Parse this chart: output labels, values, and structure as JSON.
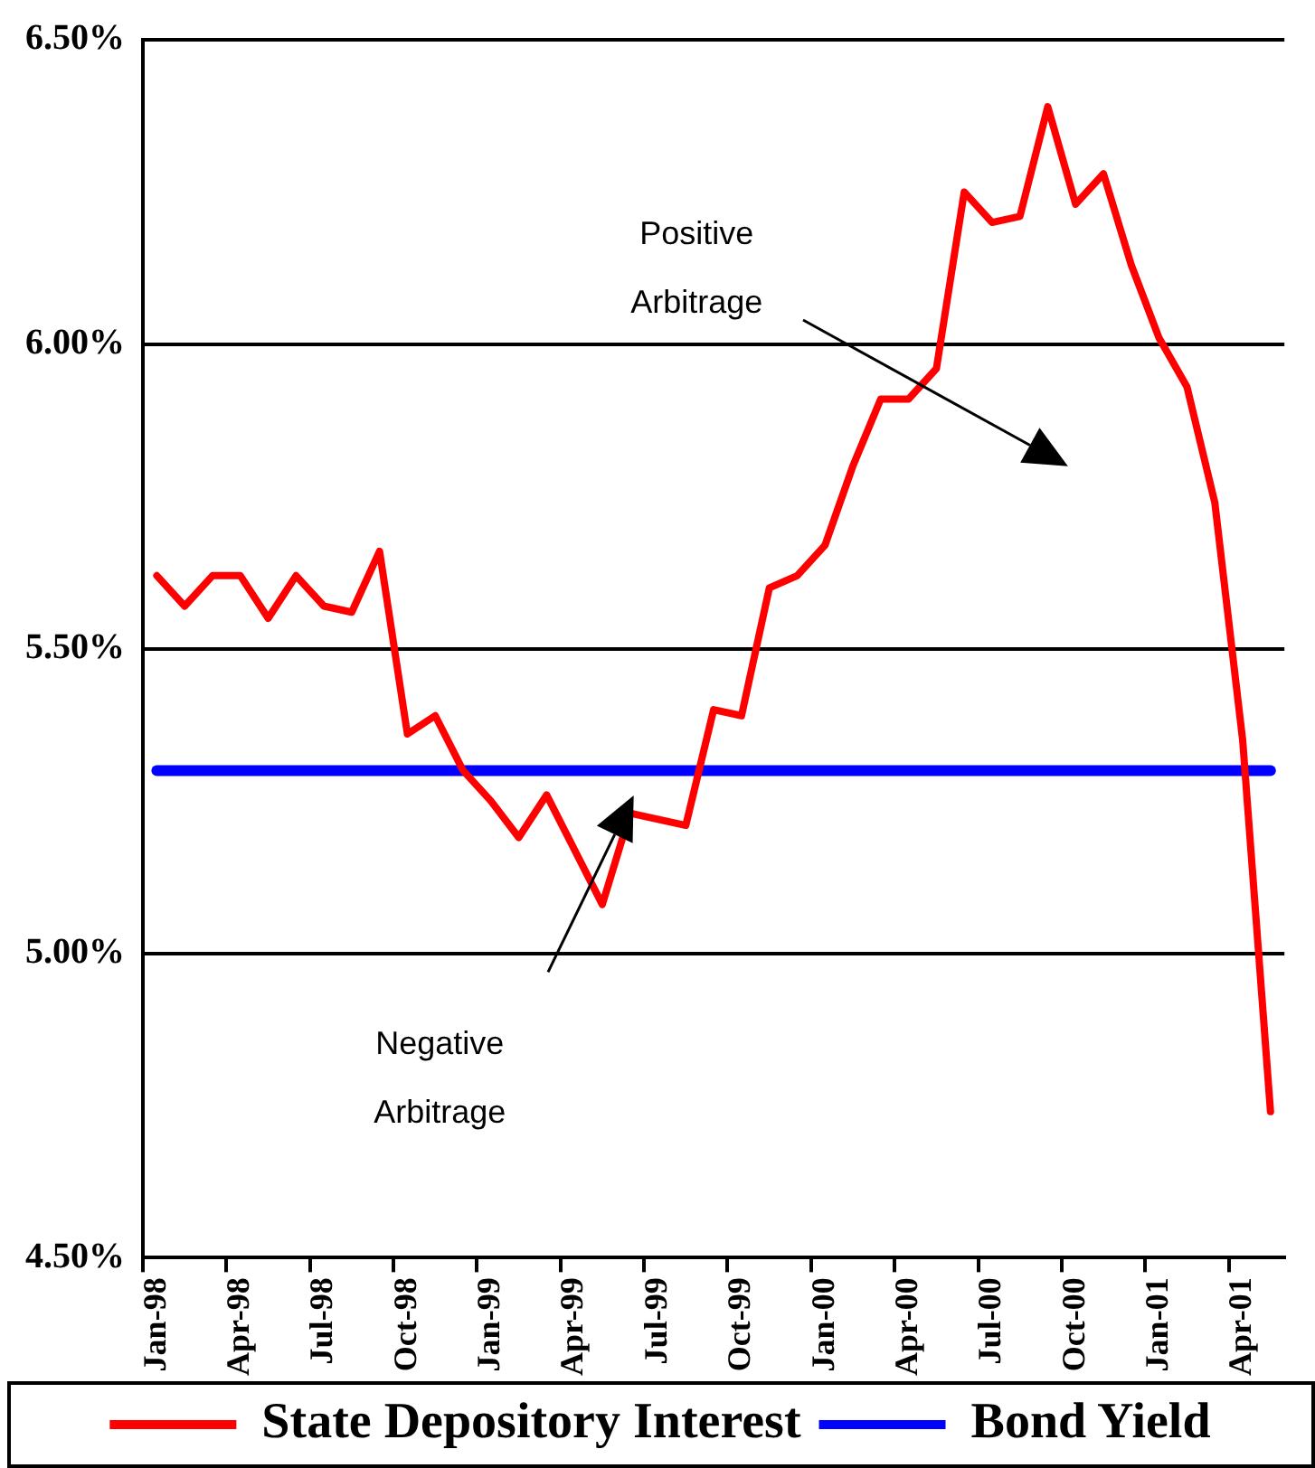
{
  "chart_data": {
    "type": "line",
    "categories": [
      "Jan-98",
      null,
      null,
      "Apr-98",
      null,
      null,
      "Jul-98",
      null,
      null,
      "Oct-98",
      null,
      null,
      "Jan-99",
      null,
      null,
      "Apr-99",
      null,
      null,
      "Jul-99",
      null,
      null,
      "Oct-99",
      null,
      null,
      "Jan-00",
      null,
      null,
      "Apr-00",
      null,
      null,
      "Jul-00",
      null,
      null,
      "Oct-00",
      null,
      null,
      "Jan-01",
      null,
      null,
      "Apr-01",
      null
    ],
    "series": [
      {
        "name": "State Depository Interest",
        "color": "#ff0000",
        "values": [
          5.62,
          5.57,
          5.62,
          5.62,
          5.55,
          5.62,
          5.57,
          5.56,
          5.66,
          5.36,
          5.39,
          5.3,
          5.25,
          5.19,
          5.26,
          5.17,
          5.08,
          5.23,
          5.22,
          5.21,
          5.4,
          5.39,
          5.6,
          5.62,
          5.67,
          5.8,
          5.91,
          5.91,
          5.96,
          6.25,
          6.2,
          6.21,
          6.39,
          6.23,
          6.28,
          6.13,
          6.01,
          5.93,
          5.74,
          5.35,
          4.74
        ]
      },
      {
        "name": "Bond Yield",
        "color": "#0000ff",
        "values": [
          5.3,
          5.3,
          5.3,
          5.3,
          5.3,
          5.3,
          5.3,
          5.3,
          5.3,
          5.3,
          5.3,
          5.3,
          5.3,
          5.3,
          5.3,
          5.3,
          5.3,
          5.3,
          5.3,
          5.3,
          5.3,
          5.3,
          5.3,
          5.3,
          5.3,
          5.3,
          5.3,
          5.3,
          5.3,
          5.3,
          5.3,
          5.3,
          5.3,
          5.3,
          5.3,
          5.3,
          5.3,
          5.3,
          5.3,
          5.3,
          5.3
        ]
      }
    ],
    "ylim": [
      4.5,
      6.5
    ],
    "yticks": [
      {
        "value": 4.5,
        "label": "4.50%"
      },
      {
        "value": 5.0,
        "label": "5.00%"
      },
      {
        "value": 5.5,
        "label": "5.50%"
      },
      {
        "value": 6.0,
        "label": "6.00%"
      },
      {
        "value": 6.5,
        "label": "6.50%"
      }
    ],
    "grid": "y",
    "legend": "bottom",
    "annotations": [
      "Positive Arbitrage",
      "Negative Arbitrage"
    ]
  }
}
